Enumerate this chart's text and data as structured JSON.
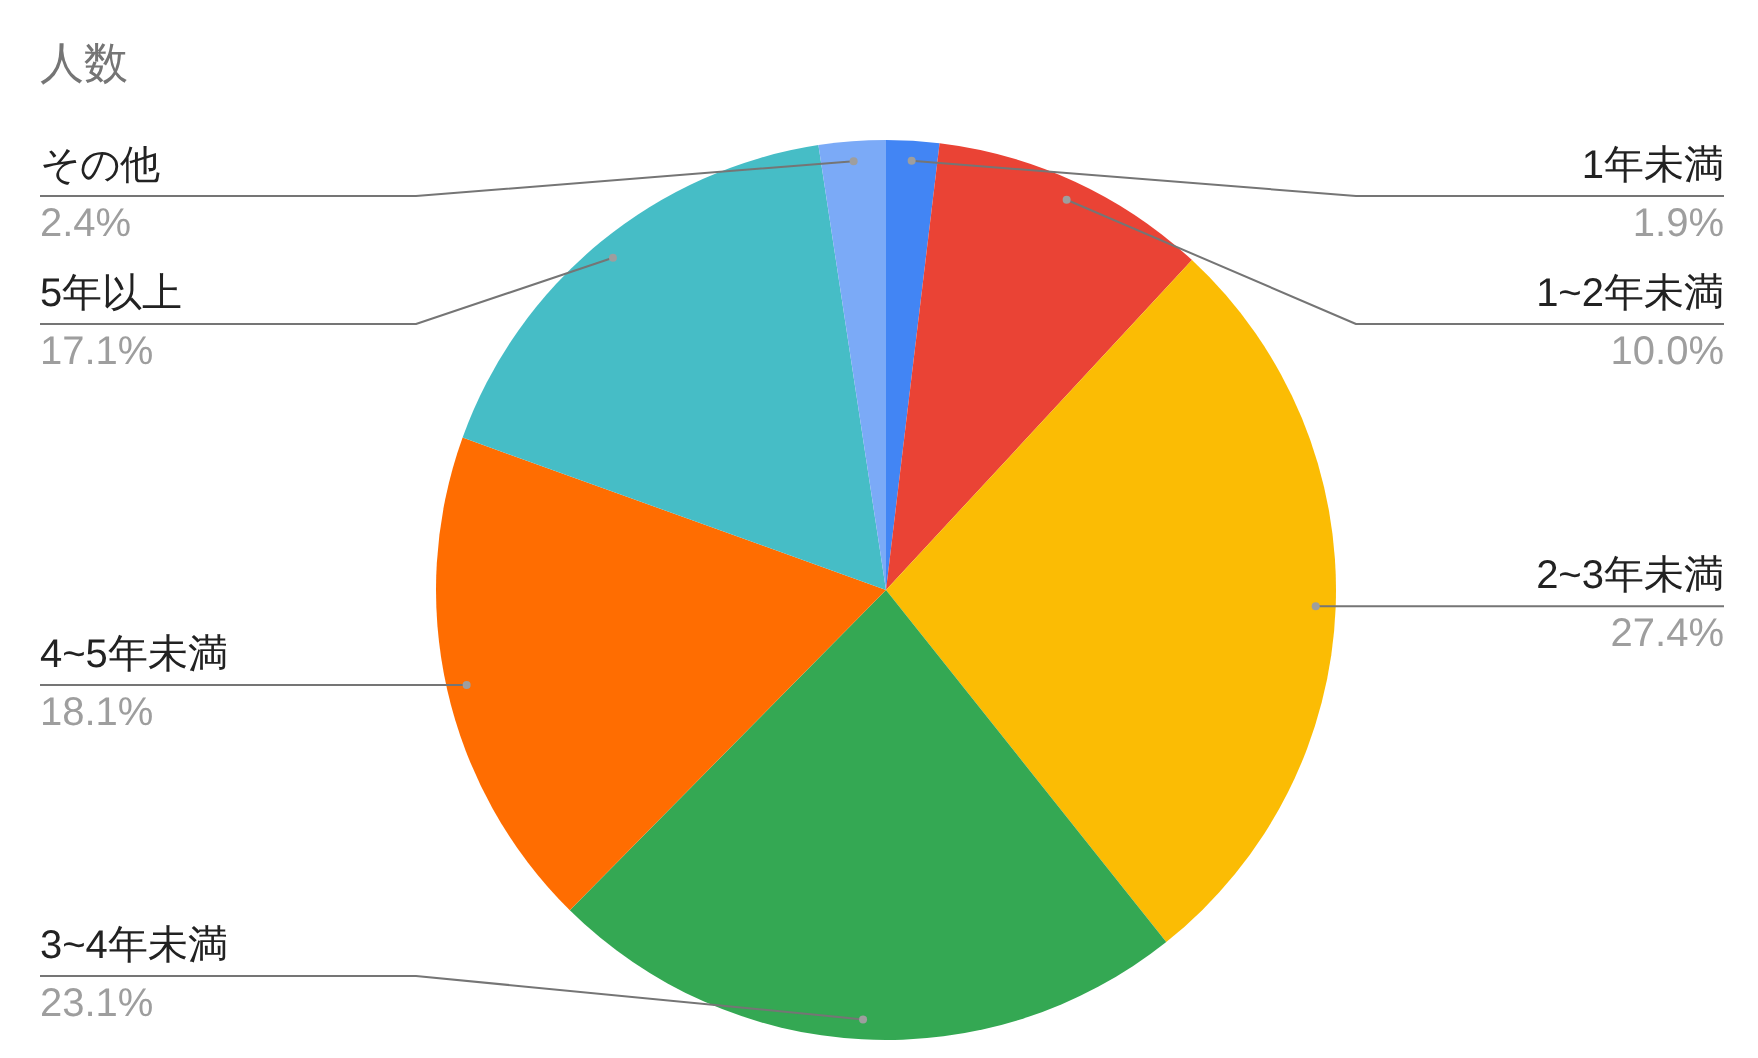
{
  "chart_data": {
    "type": "pie",
    "title": "人数",
    "categories": [
      "1年未満",
      "1~2年未満",
      "2~3年未満",
      "3~4年未満",
      "4~5年未満",
      "5年以上",
      "その他"
    ],
    "values": [
      1.9,
      10.0,
      27.4,
      23.1,
      18.1,
      17.1,
      2.4
    ],
    "colors": [
      "#4285f4",
      "#ea4335",
      "#fbbc04",
      "#34a853",
      "#ff6d01",
      "#46bdc6",
      "#7baaf7"
    ],
    "value_labels": [
      "1.9%",
      "10.0%",
      "27.4%",
      "23.1%",
      "18.1%",
      "17.1%",
      "2.4%"
    ]
  }
}
